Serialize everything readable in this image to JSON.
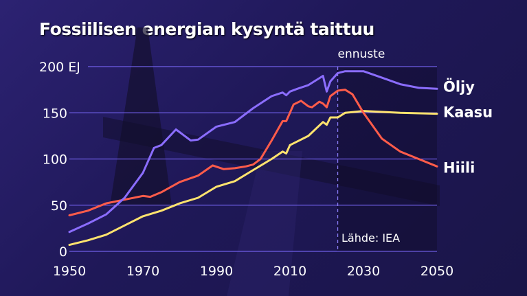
{
  "title": "Fossiilisen energian kysyntä taittuu",
  "chart_data": {
    "type": "line",
    "title": "Fossiilisen energian kysyntä taittuu",
    "unit_label": "EJ",
    "xlim": [
      1950,
      2050
    ],
    "ylim": [
      0,
      200
    ],
    "x_ticks": [
      "1950",
      "1970",
      "1990",
      "2010",
      "2030",
      "2050"
    ],
    "y_ticks": [
      "0",
      "50",
      "100",
      "150",
      "200 EJ"
    ],
    "grid": "horizontal",
    "forecast_start": 2023,
    "forecast_label": "ennuste",
    "source": "Lähde: IEA",
    "series": [
      {
        "name": "Öljy",
        "color": "#8b6dff",
        "x": [
          1950,
          1955,
          1960,
          1965,
          1970,
          1973,
          1975,
          1979,
          1980,
          1983,
          1985,
          1990,
          1995,
          2000,
          2005,
          2008,
          2009,
          2010,
          2012,
          2015,
          2019,
          2020,
          2021,
          2023,
          2025,
          2030,
          2035,
          2040,
          2045,
          2050
        ],
        "y": [
          21,
          30,
          40,
          58,
          85,
          112,
          115,
          132,
          129,
          120,
          121,
          135,
          140,
          155,
          168,
          172,
          169,
          173,
          176,
          180,
          190,
          173,
          184,
          193,
          195,
          195,
          188,
          181,
          177,
          176
        ]
      },
      {
        "name": "Kaasu",
        "color": "#ffe36e",
        "x": [
          1950,
          1955,
          1960,
          1965,
          1970,
          1975,
          1980,
          1985,
          1990,
          1995,
          2000,
          2005,
          2008,
          2009,
          2010,
          2015,
          2019,
          2020,
          2021,
          2023,
          2025,
          2030,
          2040,
          2050
        ],
        "y": [
          7,
          12,
          18,
          28,
          38,
          44,
          52,
          58,
          70,
          76,
          88,
          100,
          108,
          106,
          115,
          125,
          140,
          137,
          145,
          145,
          150,
          152,
          150,
          149
        ]
      },
      {
        "name": "Hiili",
        "color": "#ff5c4a",
        "x": [
          1950,
          1955,
          1960,
          1965,
          1970,
          1972,
          1975,
          1980,
          1985,
          1989,
          1992,
          1995,
          1998,
          2000,
          2002,
          2005,
          2008,
          2009,
          2011,
          2013,
          2015,
          2016,
          2018,
          2019,
          2020,
          2021,
          2023,
          2025,
          2027,
          2030,
          2035,
          2040,
          2045,
          2050
        ],
        "y": [
          39,
          44,
          52,
          56,
          60,
          59,
          64,
          75,
          82,
          93,
          89,
          90,
          92,
          94,
          100,
          120,
          141,
          141,
          159,
          163,
          157,
          156,
          162,
          160,
          156,
          168,
          174,
          175,
          170,
          150,
          122,
          108,
          100,
          92
        ]
      }
    ]
  }
}
